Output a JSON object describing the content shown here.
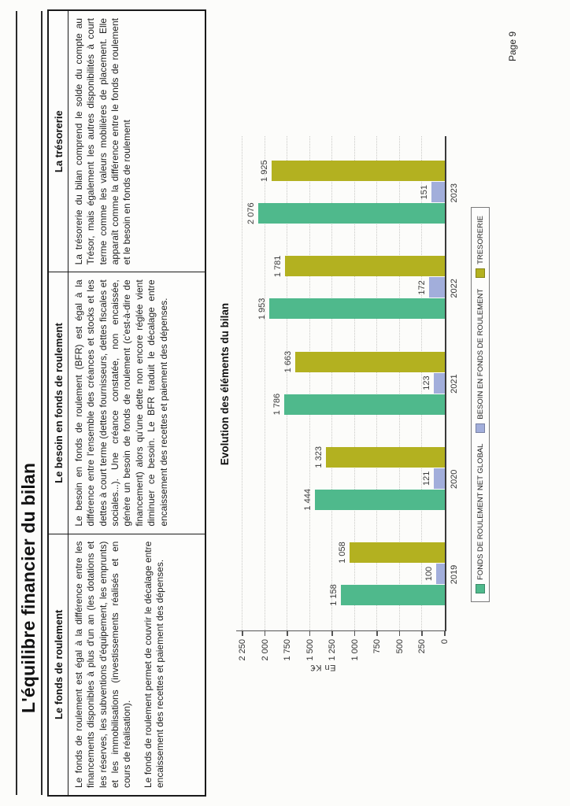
{
  "page": {
    "number_label": "Page 9"
  },
  "title": "L'équilibre financier du bilan",
  "table": {
    "columns": [
      {
        "header": "Le fonds de roulement",
        "paragraphs": [
          "Le fonds de roulement est égal à la différence entre les financements disponibles à plus d'un an (les dotations et les réserves, les subventions d'équipement, les emprunts) et les immobilisations (investissements réalisés et en cours de réalisation).",
          "Le fonds de roulement permet de couvrir le décalage entre encaissement des recettes et paiement des dépenses."
        ]
      },
      {
        "header": "Le besoin en fonds de roulement",
        "paragraphs": [
          "Le besoin en fonds de roulement (BFR) est égal à la différence entre l'ensemble des créances et stocks et les dettes à court terme (dettes fournisseurs, dettes fiscales et sociales...). Une créance constatée, non encaissée, génère un besoin de fonds de roulement (c'est-à-dire de financement) alors qu'une dette non encore réglée vient diminuer ce besoin. Le BFR traduit le décalage entre encaissement des recettes et paiement des dépenses."
        ]
      },
      {
        "header": "La trésorerie",
        "paragraphs": [
          "La trésorerie du bilan comprend le solde du compte au Trésor, mais également les autres disponibilités à court terme comme les valeurs mobilières de placement. Elle apparaît comme la différence entre le fonds de roulement et le besoin en fonds de roulement"
        ]
      }
    ]
  },
  "chart_data": {
    "type": "bar",
    "title": "Evolution des éléments du bilan",
    "ylabel": "En K€",
    "xlabel": "",
    "ylim": [
      0,
      2250
    ],
    "grid": "horizontal-dotted",
    "legend_position": "bottom",
    "categories": [
      "2019",
      "2020",
      "2021",
      "2022",
      "2023"
    ],
    "ticks": [
      {
        "label": "0",
        "value": 0
      },
      {
        "label": "250",
        "value": 250
      },
      {
        "label": "500",
        "value": 500
      },
      {
        "label": "750",
        "value": 750
      },
      {
        "label": "1 000",
        "value": 1000
      },
      {
        "label": "1 250",
        "value": 1250
      },
      {
        "label": "1 500",
        "value": 1500
      },
      {
        "label": "1 750",
        "value": 1750
      },
      {
        "label": "2 000",
        "value": 2000
      },
      {
        "label": "2 250",
        "value": 2250
      }
    ],
    "series": [
      {
        "name": "FONDS DE ROULEMENT NET GLOBAL",
        "color": "#4FB98C",
        "values": [
          1158,
          1444,
          1786,
          1953,
          2076
        ],
        "labels": [
          "1 158",
          "1 444",
          "1 786",
          "1 953",
          "2 076"
        ]
      },
      {
        "name": "BESOIN EN FONDS DE ROULEMENT",
        "color": "#A2AEDB",
        "values": [
          100,
          121,
          123,
          172,
          151
        ],
        "labels": [
          "100",
          "121",
          "123",
          "172",
          "151"
        ]
      },
      {
        "name": "TRESORERIE",
        "color": "#B3B120",
        "values": [
          1058,
          1323,
          1663,
          1781,
          1925
        ],
        "labels": [
          "1 058",
          "1 323",
          "1 663",
          "1 781",
          "1 925"
        ]
      }
    ]
  }
}
